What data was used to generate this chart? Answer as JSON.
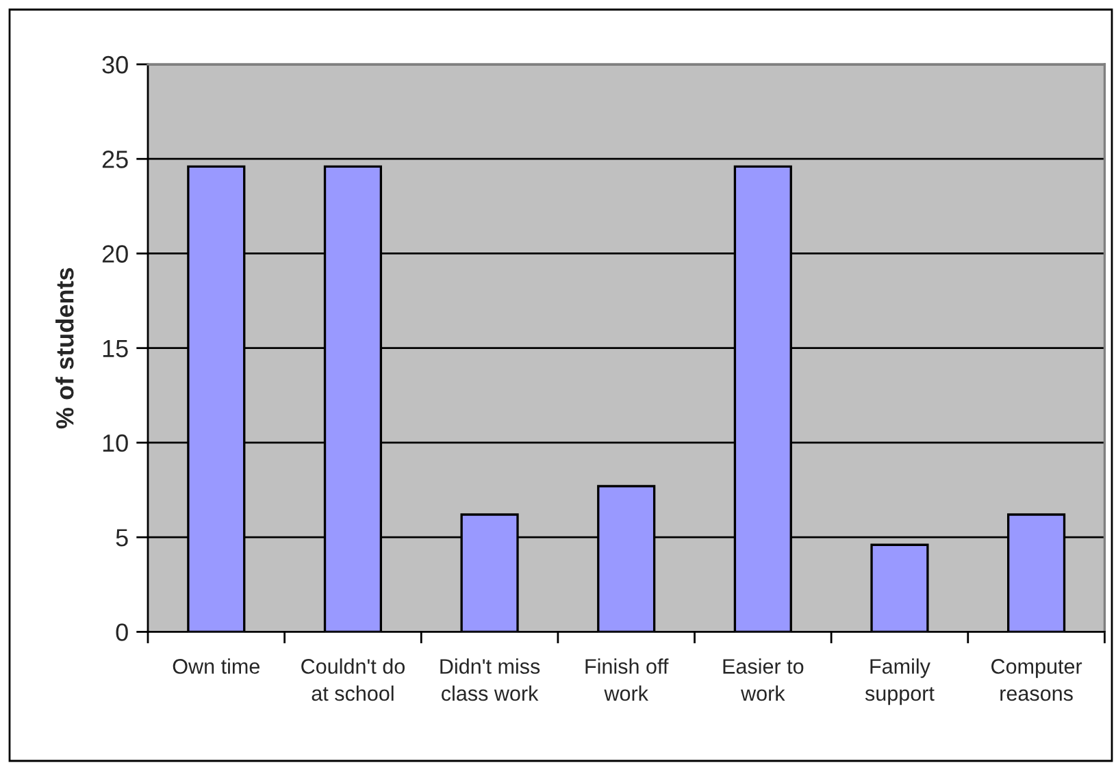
{
  "chart_data": {
    "type": "bar",
    "categories": [
      "Own time",
      "Couldn't do\nat school",
      "Didn't miss\nclass work",
      "Finish off\nwork",
      "Easier to\nwork",
      "Family\nsupport",
      "Computer\nreasons"
    ],
    "values": [
      24.6,
      24.6,
      6.2,
      7.7,
      24.6,
      4.6,
      6.2
    ],
    "color": "#9999ff",
    "ylabel": "% of students",
    "ylim": [
      0,
      30
    ],
    "yticks": [
      0,
      5,
      10,
      15,
      20,
      25,
      30
    ],
    "grid": "y"
  }
}
